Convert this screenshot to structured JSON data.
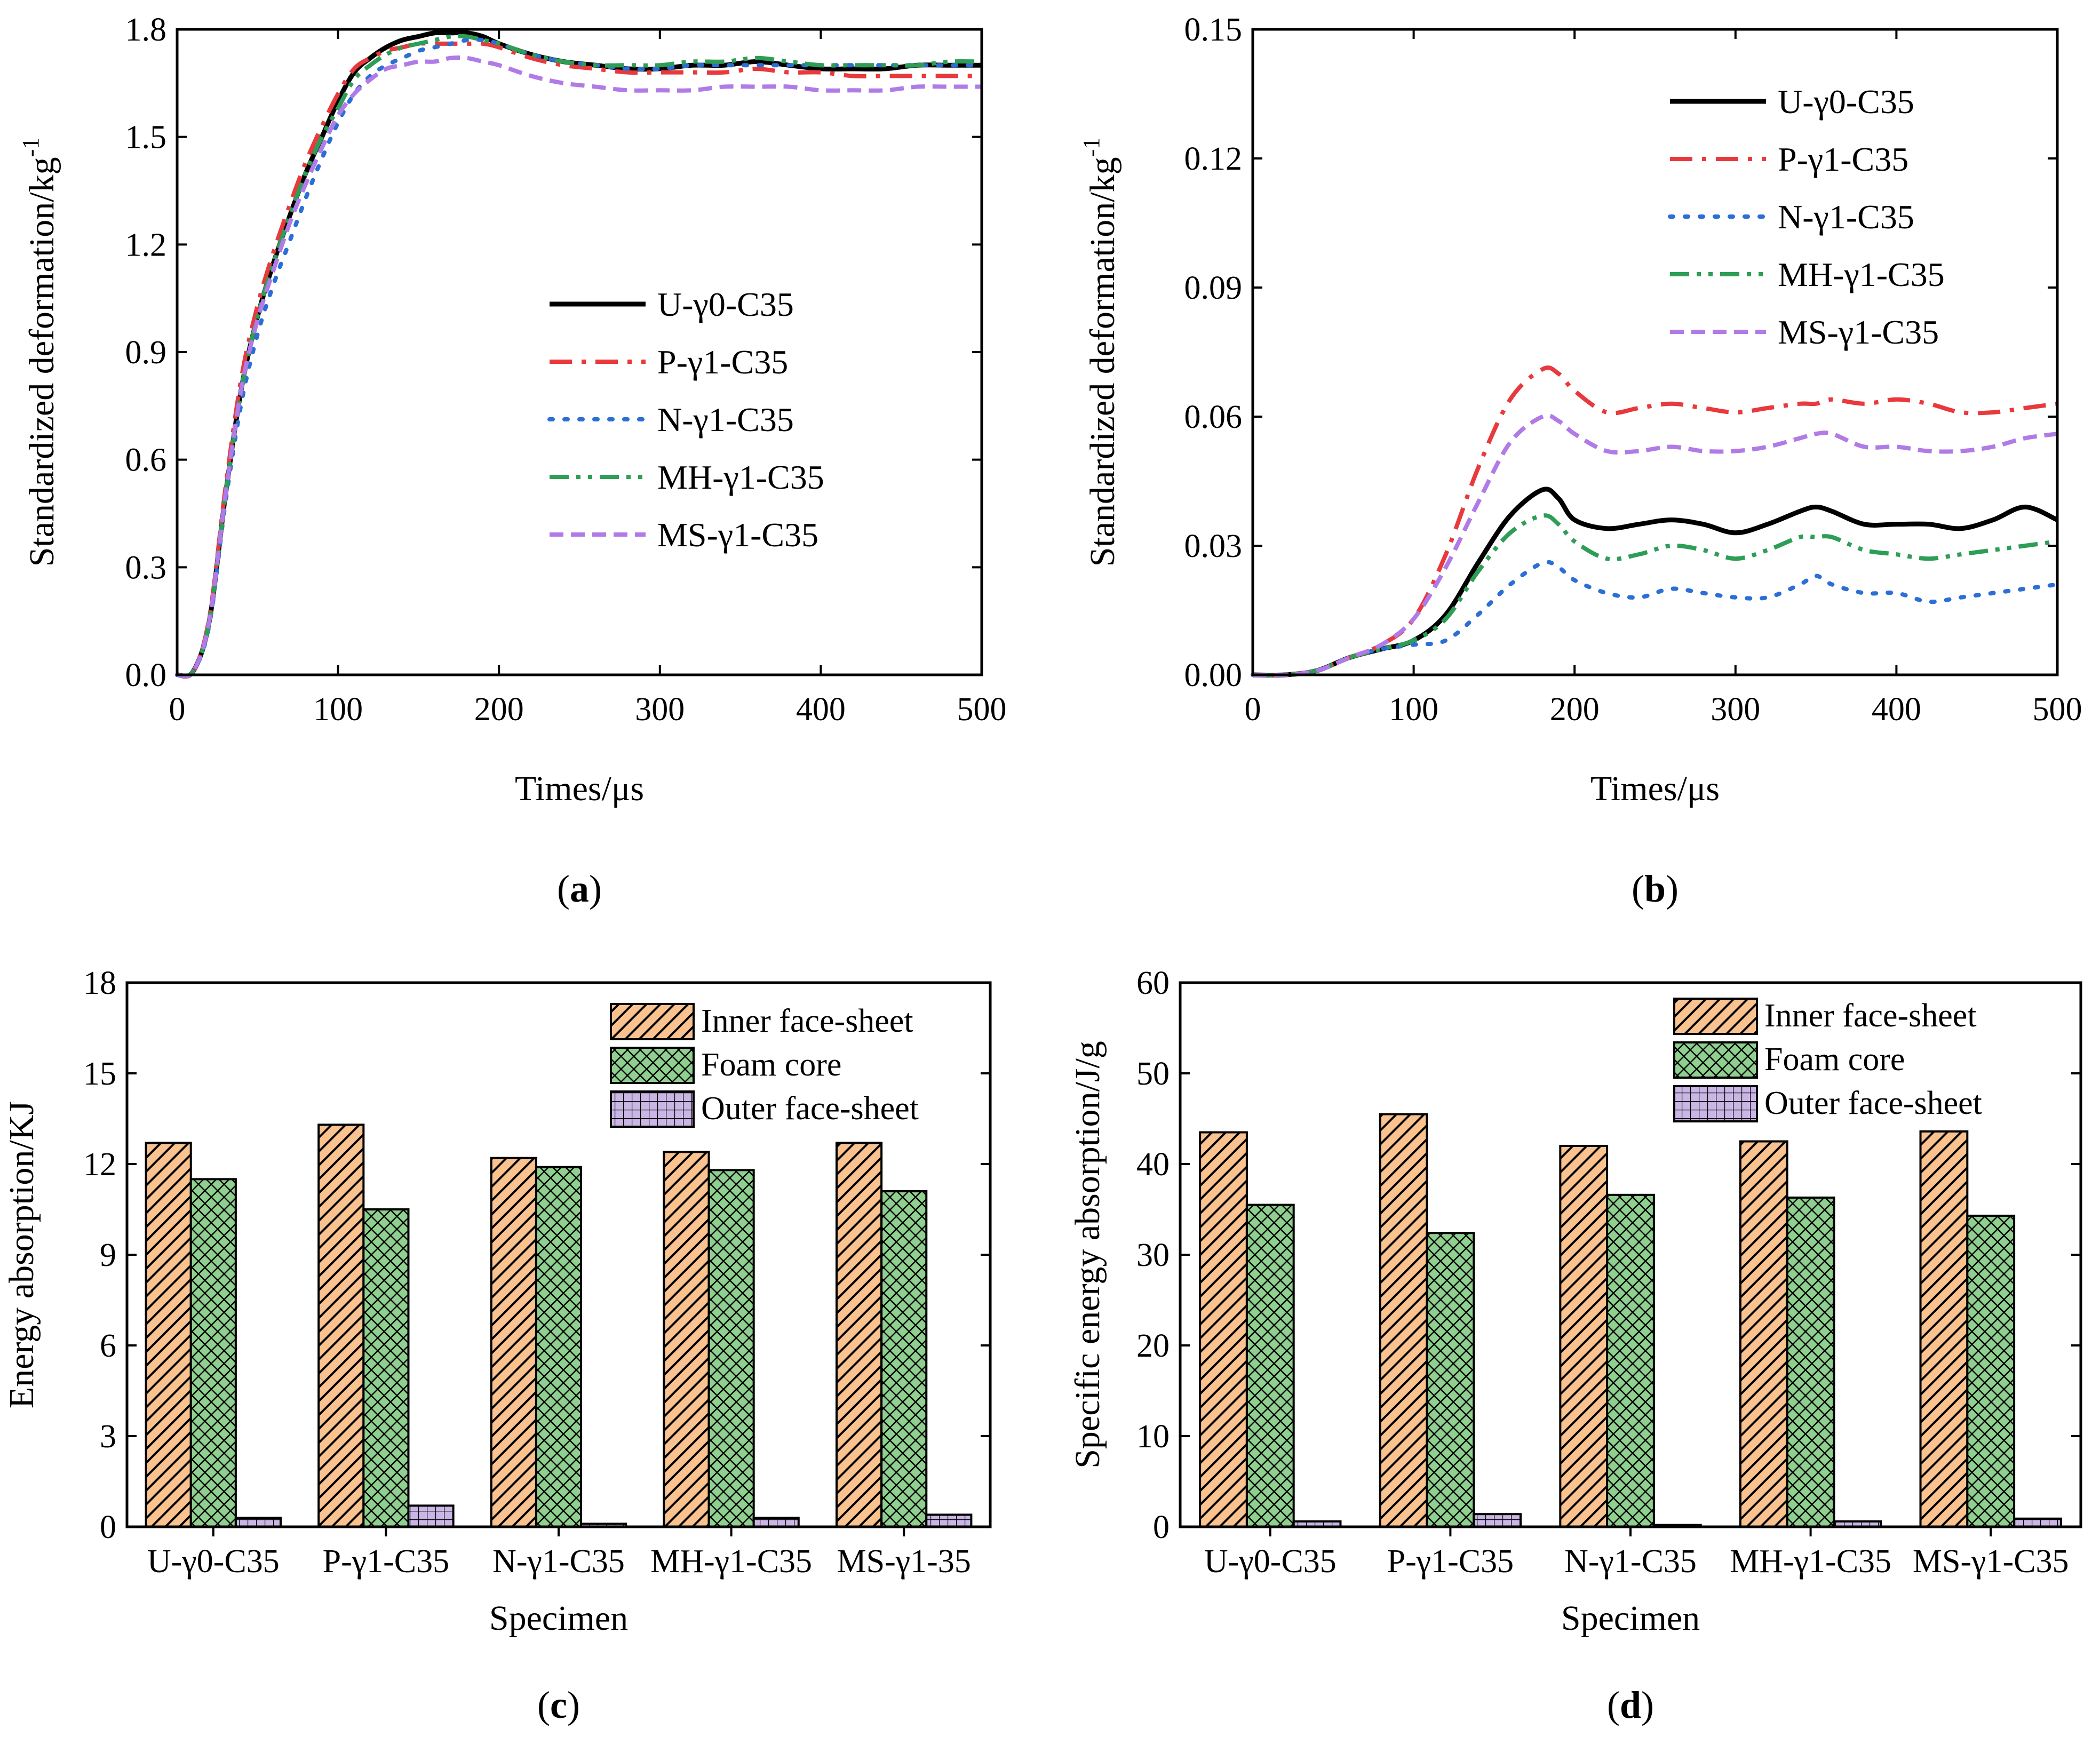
{
  "chart_data": [
    {
      "panel": "a",
      "panel_label": "(a)",
      "panel_open": "(",
      "panel_letter": "a",
      "panel_close": ")",
      "type": "line",
      "xlabel": "Times/μs",
      "ylabel": "Standardized deformation/kg",
      "ylabel_sup": "-1",
      "xlim": [
        0,
        500
      ],
      "ylim": [
        0,
        1.8
      ],
      "xticks": [
        0,
        100,
        200,
        300,
        400,
        500
      ],
      "xtick_labels": [
        "0",
        "100",
        "200",
        "300",
        "400",
        "500"
      ],
      "yticks": [
        0,
        0.3,
        0.6,
        0.9,
        1.2,
        1.5,
        1.8
      ],
      "ytick_labels": [
        "0.0",
        "0.3",
        "0.6",
        "0.9",
        "1.2",
        "1.5",
        "1.8"
      ],
      "legend_position": "center-right",
      "x": [
        0,
        10,
        20,
        30,
        40,
        50,
        60,
        70,
        80,
        90,
        100,
        110,
        120,
        130,
        140,
        150,
        160,
        170,
        180,
        190,
        200,
        220,
        240,
        260,
        280,
        300,
        320,
        340,
        360,
        380,
        400,
        420,
        440,
        460,
        480,
        500
      ],
      "series": [
        {
          "name": "U-γ0-C35",
          "color": "#000000",
          "dash": "solid",
          "values": [
            0.0,
            0.01,
            0.15,
            0.5,
            0.8,
            1.0,
            1.15,
            1.28,
            1.4,
            1.5,
            1.6,
            1.68,
            1.72,
            1.75,
            1.77,
            1.78,
            1.79,
            1.79,
            1.79,
            1.78,
            1.76,
            1.73,
            1.71,
            1.7,
            1.69,
            1.69,
            1.7,
            1.7,
            1.71,
            1.7,
            1.69,
            1.69,
            1.69,
            1.7,
            1.7,
            1.7
          ]
        },
        {
          "name": "P-γ1-C35",
          "color": "#E8393C",
          "dash": "dashdot",
          "values": [
            0.0,
            0.01,
            0.16,
            0.52,
            0.83,
            1.03,
            1.18,
            1.31,
            1.43,
            1.53,
            1.62,
            1.69,
            1.72,
            1.74,
            1.75,
            1.76,
            1.76,
            1.76,
            1.76,
            1.76,
            1.75,
            1.72,
            1.7,
            1.69,
            1.68,
            1.68,
            1.68,
            1.68,
            1.69,
            1.68,
            1.68,
            1.67,
            1.67,
            1.67,
            1.67,
            1.67
          ]
        },
        {
          "name": "N-γ1-C35",
          "color": "#2B6FD6",
          "dash": "dotted",
          "values": [
            0.0,
            0.01,
            0.14,
            0.48,
            0.76,
            0.95,
            1.09,
            1.21,
            1.33,
            1.44,
            1.54,
            1.62,
            1.67,
            1.7,
            1.72,
            1.74,
            1.75,
            1.76,
            1.77,
            1.77,
            1.76,
            1.73,
            1.71,
            1.7,
            1.69,
            1.69,
            1.7,
            1.7,
            1.7,
            1.7,
            1.7,
            1.7,
            1.7,
            1.7,
            1.7,
            1.7
          ]
        },
        {
          "name": "MH-γ1-C35",
          "color": "#2E9E57",
          "dash": "dashdotdot",
          "values": [
            0.0,
            0.01,
            0.15,
            0.5,
            0.8,
            1.0,
            1.15,
            1.28,
            1.4,
            1.5,
            1.58,
            1.66,
            1.7,
            1.73,
            1.75,
            1.76,
            1.77,
            1.78,
            1.78,
            1.77,
            1.76,
            1.73,
            1.71,
            1.7,
            1.7,
            1.7,
            1.71,
            1.71,
            1.72,
            1.71,
            1.7,
            1.7,
            1.7,
            1.7,
            1.71,
            1.71
          ]
        },
        {
          "name": "MS-γ1-C35",
          "color": "#B07BE6",
          "dash": "dashed",
          "values": [
            0.0,
            0.01,
            0.15,
            0.5,
            0.8,
            0.99,
            1.13,
            1.26,
            1.37,
            1.47,
            1.56,
            1.62,
            1.66,
            1.69,
            1.7,
            1.71,
            1.71,
            1.72,
            1.72,
            1.71,
            1.7,
            1.67,
            1.65,
            1.64,
            1.63,
            1.63,
            1.63,
            1.64,
            1.64,
            1.64,
            1.63,
            1.63,
            1.63,
            1.64,
            1.64,
            1.64
          ]
        }
      ]
    },
    {
      "panel": "b",
      "panel_label": "(b)",
      "panel_open": "(",
      "panel_letter": "b",
      "panel_close": ")",
      "type": "line",
      "xlabel": "Times/μs",
      "ylabel": "Standardized deformation/kg",
      "ylabel_sup": "-1",
      "xlim": [
        0,
        500
      ],
      "ylim": [
        0,
        0.15
      ],
      "xticks": [
        0,
        100,
        200,
        300,
        400,
        500
      ],
      "xtick_labels": [
        "0",
        "100",
        "200",
        "300",
        "400",
        "500"
      ],
      "yticks": [
        0,
        0.03,
        0.06,
        0.09,
        0.12,
        0.15
      ],
      "ytick_labels": [
        "0.00",
        "0.03",
        "0.06",
        "0.09",
        "0.12",
        "0.15"
      ],
      "legend_position": "top-right",
      "x": [
        0,
        20,
        40,
        60,
        80,
        100,
        120,
        140,
        160,
        180,
        190,
        200,
        220,
        240,
        260,
        280,
        300,
        320,
        340,
        350,
        360,
        380,
        400,
        420,
        440,
        460,
        480,
        500
      ],
      "series": [
        {
          "name": "U-γ0-C35",
          "color": "#000000",
          "dash": "solid",
          "values": [
            0.0,
            0.0,
            0.001,
            0.004,
            0.006,
            0.008,
            0.014,
            0.026,
            0.037,
            0.043,
            0.041,
            0.036,
            0.034,
            0.035,
            0.036,
            0.035,
            0.033,
            0.035,
            0.038,
            0.039,
            0.038,
            0.035,
            0.035,
            0.035,
            0.034,
            0.036,
            0.039,
            0.036
          ]
        },
        {
          "name": "P-γ1-C35",
          "color": "#E8393C",
          "dash": "dashdot",
          "values": [
            0.0,
            0.0,
            0.001,
            0.004,
            0.007,
            0.013,
            0.028,
            0.048,
            0.064,
            0.071,
            0.07,
            0.066,
            0.061,
            0.062,
            0.063,
            0.062,
            0.061,
            0.062,
            0.063,
            0.063,
            0.064,
            0.063,
            0.064,
            0.063,
            0.061,
            0.061,
            0.062,
            0.063
          ]
        },
        {
          "name": "N-γ1-C35",
          "color": "#2B6FD6",
          "dash": "dotted",
          "values": [
            0.0,
            0.0,
            0.001,
            0.004,
            0.006,
            0.007,
            0.008,
            0.014,
            0.021,
            0.026,
            0.025,
            0.022,
            0.019,
            0.018,
            0.02,
            0.019,
            0.018,
            0.018,
            0.021,
            0.023,
            0.021,
            0.019,
            0.019,
            0.017,
            0.018,
            0.019,
            0.02,
            0.021
          ]
        },
        {
          "name": "MH-γ1-C35",
          "color": "#2E9E57",
          "dash": "dashdotdot",
          "values": [
            0.0,
            0.0,
            0.001,
            0.004,
            0.006,
            0.008,
            0.013,
            0.024,
            0.033,
            0.037,
            0.035,
            0.031,
            0.027,
            0.028,
            0.03,
            0.029,
            0.027,
            0.029,
            0.032,
            0.032,
            0.032,
            0.029,
            0.028,
            0.027,
            0.028,
            0.029,
            0.03,
            0.031
          ]
        },
        {
          "name": "MS-γ1-C35",
          "color": "#B07BE6",
          "dash": "dashed",
          "values": [
            0.0,
            0.0,
            0.001,
            0.004,
            0.007,
            0.013,
            0.025,
            0.04,
            0.054,
            0.06,
            0.059,
            0.056,
            0.052,
            0.052,
            0.053,
            0.052,
            0.052,
            0.053,
            0.055,
            0.056,
            0.056,
            0.053,
            0.053,
            0.052,
            0.052,
            0.053,
            0.055,
            0.056
          ]
        }
      ]
    },
    {
      "panel": "c",
      "panel_label": "(c)",
      "panel_open": "(",
      "panel_letter": "c",
      "panel_close": ")",
      "type": "bar",
      "xlabel": "Specimen",
      "ylabel": "Energy absorption/KJ",
      "ylim": [
        0,
        18
      ],
      "yticks": [
        0,
        3,
        6,
        9,
        12,
        15,
        18
      ],
      "ytick_labels": [
        "0",
        "3",
        "6",
        "9",
        "12",
        "15",
        "18"
      ],
      "categories": [
        "U-γ0-C35",
        "P-γ1-C35",
        "N-γ1-C35",
        "MH-γ1-C35",
        "MS-γ1-35"
      ],
      "legend_position": "top-right",
      "series": [
        {
          "name": "Inner face-sheet",
          "color": "#F9C28F",
          "pattern": "hatch-diag",
          "values": [
            12.7,
            13.3,
            12.2,
            12.4,
            12.7
          ]
        },
        {
          "name": "Foam core",
          "color": "#8FCF8F",
          "pattern": "crosshatch",
          "values": [
            11.5,
            10.5,
            11.9,
            11.8,
            11.1
          ]
        },
        {
          "name": "Outer face-sheet",
          "color": "#C9B6E4",
          "pattern": "grid",
          "values": [
            0.3,
            0.7,
            0.1,
            0.3,
            0.4
          ]
        }
      ]
    },
    {
      "panel": "d",
      "panel_label": "(d)",
      "panel_open": "(",
      "panel_letter": "d",
      "panel_close": ")",
      "type": "bar",
      "xlabel": "Specimen",
      "ylabel": "Specific energy absorption/J/g",
      "ylim": [
        0,
        60
      ],
      "yticks": [
        0,
        10,
        20,
        30,
        40,
        50,
        60
      ],
      "ytick_labels": [
        "0",
        "10",
        "20",
        "30",
        "40",
        "50",
        "60"
      ],
      "categories": [
        "U-γ0-C35",
        "P-γ1-C35",
        "N-γ1-C35",
        "MH-γ1-C35",
        "MS-γ1-C35"
      ],
      "legend_position": "top-right",
      "series": [
        {
          "name": "Inner face-sheet",
          "color": "#F9C28F",
          "pattern": "hatch-diag",
          "values": [
            43.5,
            45.5,
            42.0,
            42.5,
            43.6
          ]
        },
        {
          "name": "Foam core",
          "color": "#8FCF8F",
          "pattern": "crosshatch",
          "values": [
            35.5,
            32.4,
            36.6,
            36.3,
            34.3
          ]
        },
        {
          "name": "Outer face-sheet",
          "color": "#C9B6E4",
          "pattern": "grid",
          "values": [
            0.6,
            1.4,
            0.2,
            0.6,
            0.9
          ]
        }
      ]
    }
  ]
}
